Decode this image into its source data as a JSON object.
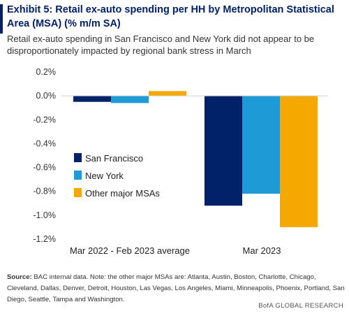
{
  "header": {
    "title": "Exhibit 5: Retail ex-auto spending per HH by Metropolitan Statistical Area (MSA) (% m/m SA)",
    "subtitle": "Retail ex-auto spending in San Francisco and New York did not appear to be disproportionately impacted by regional bank stress in March"
  },
  "chart_data": {
    "type": "bar",
    "categories": [
      "Mar 2022 - Feb 2023 average",
      "Mar 2023"
    ],
    "series": [
      {
        "name": "San Francisco",
        "values": [
          -0.05,
          -0.92
        ],
        "color": "#012169"
      },
      {
        "name": "New York",
        "values": [
          -0.06,
          -0.82
        ],
        "color": "#1e9ad6"
      },
      {
        "name": "Other major MSAs",
        "values": [
          0.04,
          -1.1
        ],
        "color": "#f5a800"
      }
    ],
    "ylim": [
      -1.2,
      0.2
    ],
    "yticks": [
      "0.2%",
      "0.0%",
      "-0.2%",
      "-0.4%",
      "-0.6%",
      "-0.8%",
      "-1.0%",
      "-1.2%"
    ],
    "ytick_values": [
      0.2,
      0.0,
      -0.2,
      -0.4,
      -0.6,
      -0.8,
      -1.0,
      -1.2
    ],
    "legend_position": "left",
    "grid": false
  },
  "footer": {
    "source_label": "Source:",
    "source_text": "BAC internal data. Note: the other major MSAs are: Atlanta, Austin, Boston, Charlotte, Chicago, Cleveland, Dallas, Denver, Detroit, Houston, Las Vegas, Los Angeles, Miami, Minneapolis, Phoenix, Portland, San Diego, Seattle, Tampa and Washington.",
    "brand": "BofA GLOBAL RESEARCH"
  }
}
